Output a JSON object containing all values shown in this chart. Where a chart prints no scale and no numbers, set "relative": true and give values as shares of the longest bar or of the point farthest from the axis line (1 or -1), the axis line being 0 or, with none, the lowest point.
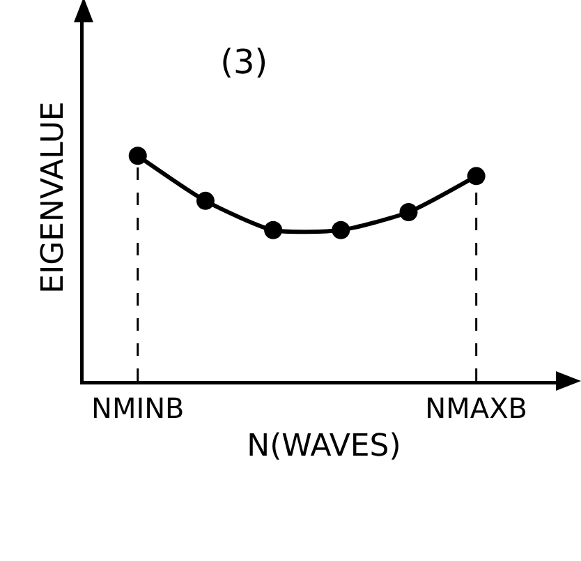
{
  "chart_data": {
    "type": "line",
    "title": "(3)",
    "xlabel": "N(WAVES)",
    "ylabel": "EIGENVALUE",
    "relative": true,
    "categories": [
      "NMINB",
      null,
      null,
      null,
      null,
      "NMAXB"
    ],
    "series": [
      {
        "color": "#000000",
        "values": [
          1,
          0.8,
          0.67,
          0.67,
          0.75,
          0.91
        ]
      }
    ],
    "ref_lines": [
      {
        "axis": "x",
        "value": "NMINB",
        "color": "#000000",
        "line_style": "dashed"
      },
      {
        "axis": "x",
        "value": "NMAXB",
        "color": "#000000",
        "line_style": "dashed"
      }
    ],
    "marker": "circle",
    "line_style": "solid"
  }
}
